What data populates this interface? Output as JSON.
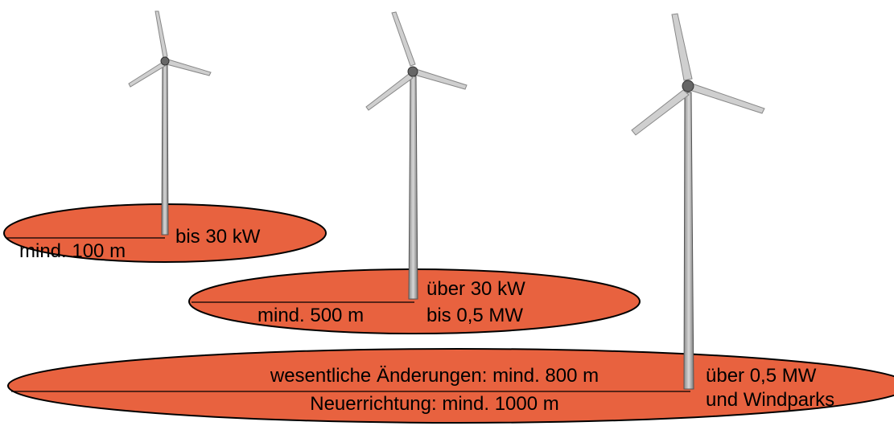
{
  "zones": [
    {
      "power": [
        "bis 30 kW"
      ],
      "distance": [
        "mind. 100 m"
      ]
    },
    {
      "power": [
        "über 30 kW",
        "bis 0,5 MW"
      ],
      "distance": [
        "mind. 500 m"
      ]
    },
    {
      "power": [
        "über 0,5 MW",
        "und Windparks"
      ],
      "distance": [
        "wesentliche Änderungen: mind. 800 m",
        "Neuerrichtung: mind. 1000 m"
      ]
    }
  ]
}
